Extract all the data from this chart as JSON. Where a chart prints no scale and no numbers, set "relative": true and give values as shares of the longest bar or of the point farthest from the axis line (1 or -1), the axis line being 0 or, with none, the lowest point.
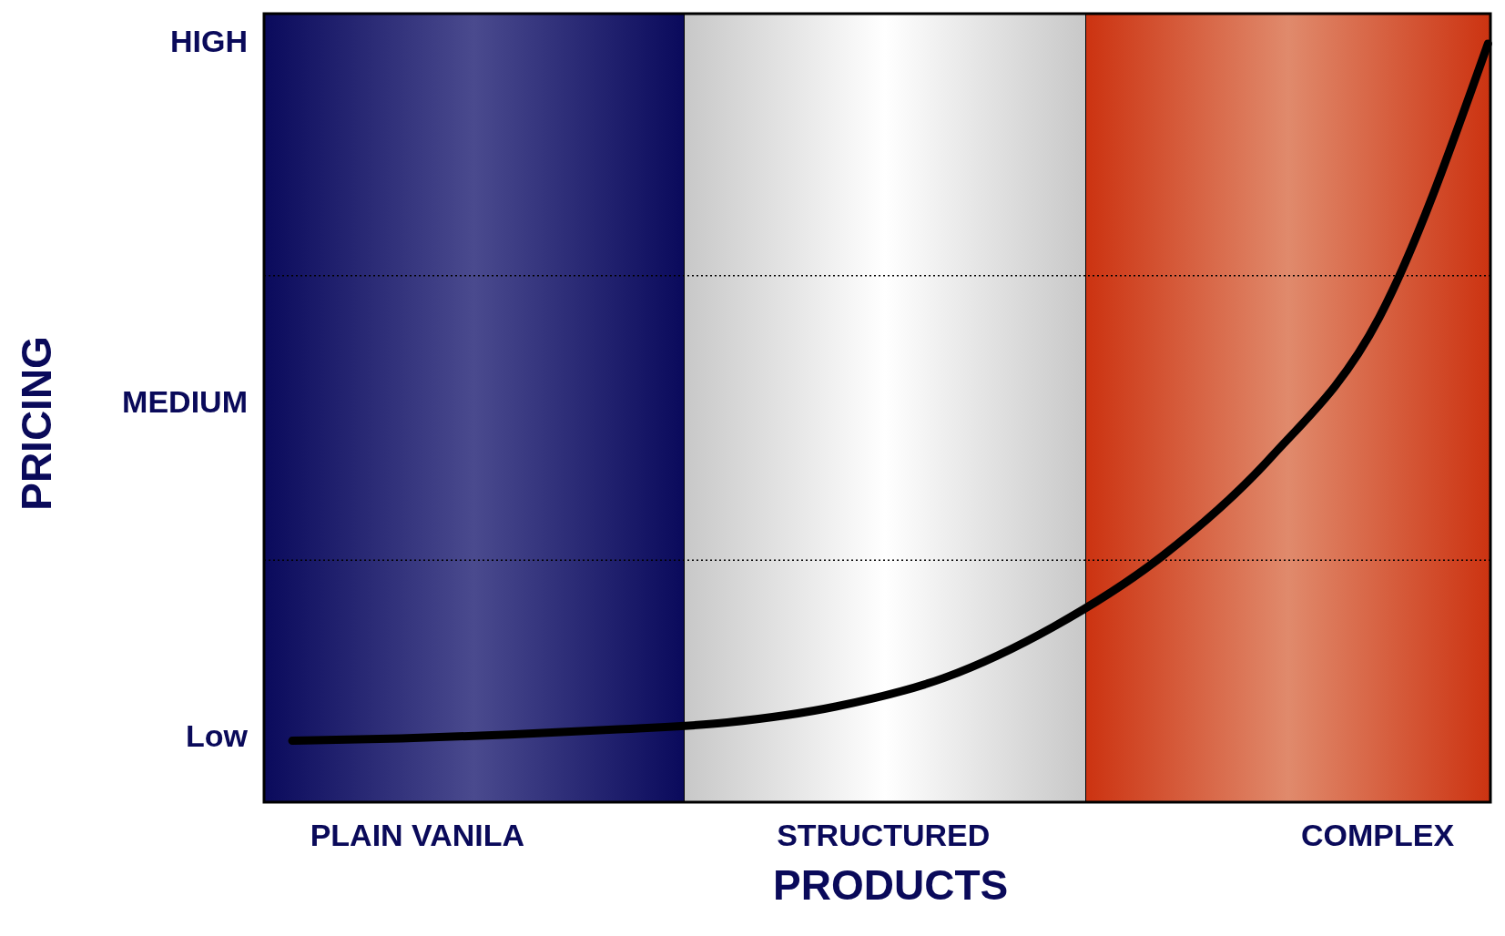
{
  "chart_data": {
    "type": "line",
    "relative": true,
    "xlabel": "PRODUCTS",
    "ylabel": "PRICING",
    "tick_labels": false,
    "categories": [
      null,
      null,
      null,
      null,
      null,
      null,
      null,
      null,
      null,
      null,
      null,
      null
    ],
    "series": [
      {
        "color": "#000000",
        "values": [
          0.081,
          0.084,
          0.089,
          0.096,
          0.105,
          0.126,
          0.164,
          0.231,
          0.324,
          0.454,
          0.639,
          1
        ]
      }
    ],
    "ref_lines": [
      {
        "axis": "y",
        "value": 0.319,
        "line_style": "dotted"
      },
      {
        "axis": "y",
        "value": 0.694,
        "line_style": "dotted"
      }
    ],
    "annotations": [
      "HIGH",
      "MEDIUM",
      "Low",
      "PLAIN VANILA",
      "STRUCTURED",
      "COMPLEX"
    ],
    "grid": false
  }
}
